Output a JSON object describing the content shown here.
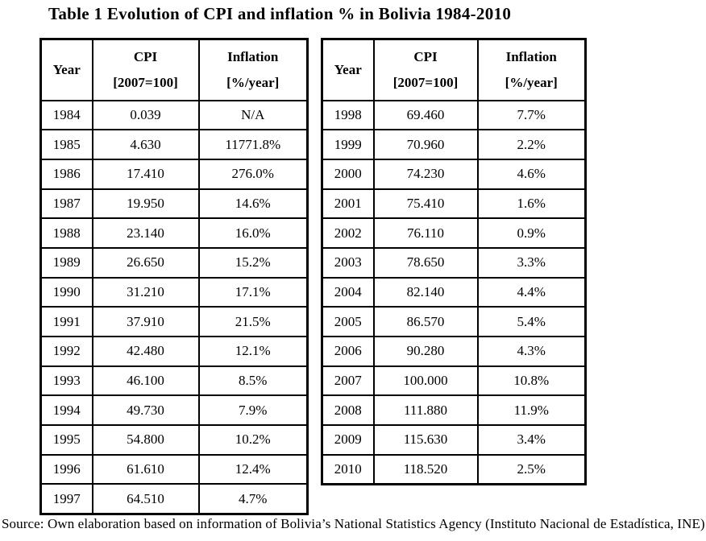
{
  "title": "Table 1 Evolution of CPI and inflation % in Bolivia 1984-2010",
  "headers": {
    "year": "Year",
    "cpi_line1": "CPI",
    "cpi_line2": "[2007=100]",
    "inflation_line1": "Inflation",
    "inflation_line2": "[%/year]"
  },
  "left_table": {
    "rows": [
      [
        "1984",
        "0.039",
        "N/A"
      ],
      [
        "1985",
        "4.630",
        "11771.8%"
      ],
      [
        "1986",
        "17.410",
        "276.0%"
      ],
      [
        "1987",
        "19.950",
        "14.6%"
      ],
      [
        "1988",
        "23.140",
        "16.0%"
      ],
      [
        "1989",
        "26.650",
        "15.2%"
      ],
      [
        "1990",
        "31.210",
        "17.1%"
      ],
      [
        "1991",
        "37.910",
        "21.5%"
      ],
      [
        "1992",
        "42.480",
        "12.1%"
      ],
      [
        "1993",
        "46.100",
        "8.5%"
      ],
      [
        "1994",
        "49.730",
        "7.9%"
      ],
      [
        "1995",
        "54.800",
        "10.2%"
      ],
      [
        "1996",
        "61.610",
        "12.4%"
      ],
      [
        "1997",
        "64.510",
        "4.7%"
      ]
    ]
  },
  "right_table": {
    "rows": [
      [
        "1998",
        "69.460",
        "7.7%"
      ],
      [
        "1999",
        "70.960",
        "2.2%"
      ],
      [
        "2000",
        "74.230",
        "4.6%"
      ],
      [
        "2001",
        "75.410",
        "1.6%"
      ],
      [
        "2002",
        "76.110",
        "0.9%"
      ],
      [
        "2003",
        "78.650",
        "3.3%"
      ],
      [
        "2004",
        "82.140",
        "4.4%"
      ],
      [
        "2005",
        "86.570",
        "5.4%"
      ],
      [
        "2006",
        "90.280",
        "4.3%"
      ],
      [
        "2007",
        "100.000",
        "10.8%"
      ],
      [
        "2008",
        "111.880",
        "11.9%"
      ],
      [
        "2009",
        "115.630",
        "3.4%"
      ],
      [
        "2010",
        "118.520",
        "2.5%"
      ]
    ]
  },
  "source": "Source: Own elaboration based on information of Bolivia’s National Statistics Agency (Instituto Nacional de Estadística, INE)"
}
